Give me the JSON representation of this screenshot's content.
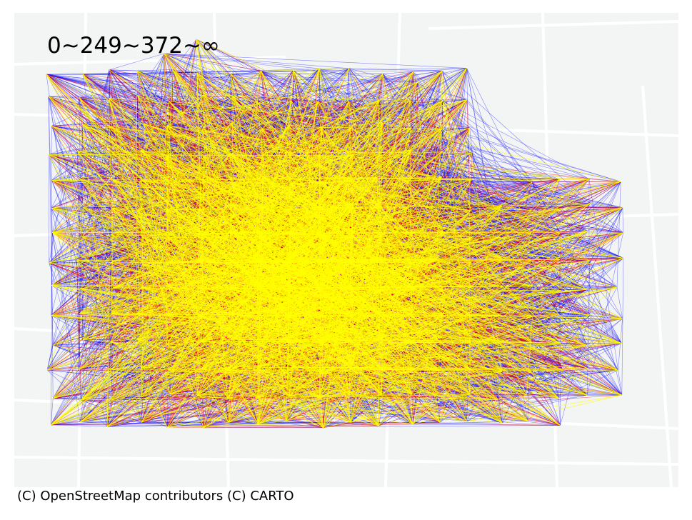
{
  "legend": {
    "title": "0~249~372~∞",
    "classes": [
      {
        "range": "0~249",
        "color": "#0000ff"
      },
      {
        "range": "249~372",
        "color": "#ff0000"
      },
      {
        "range": "372~∞",
        "color": "#ffff00"
      }
    ]
  },
  "basemap": {
    "attribution": "(C) OpenStreetMap contributors (C) CARTO",
    "style": "light-gray street basemap",
    "background_color": "#f2f3f3",
    "road_color": "#ffffff"
  },
  "flows": {
    "type": "origin-destination flow lines between grid cells",
    "colors": {
      "low": "#0000ff",
      "mid": "#ff0000",
      "high": "#ffff00"
    }
  }
}
